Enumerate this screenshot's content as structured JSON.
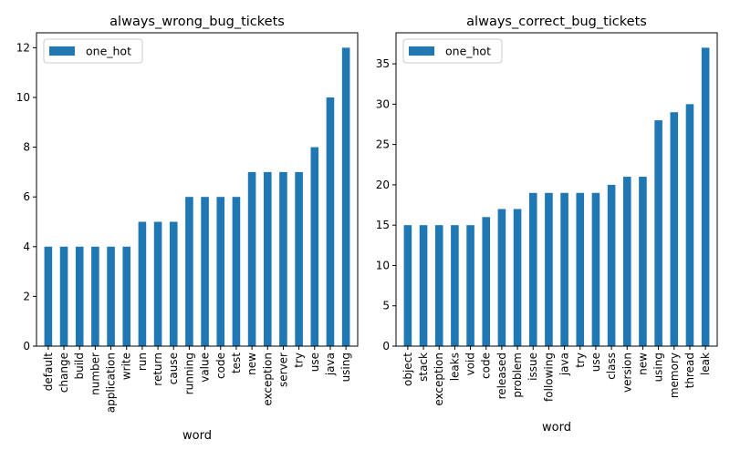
{
  "chart_data": [
    {
      "type": "bar",
      "title": "always_wrong_bug_tickets",
      "xlabel": "word",
      "ylabel": "",
      "ylim": [
        0,
        12.6
      ],
      "yticks": [
        0,
        2,
        4,
        6,
        8,
        10,
        12
      ],
      "legend": {
        "position": "top-left",
        "entries": [
          "one_hot"
        ]
      },
      "grid": false,
      "categories": [
        "default",
        "change",
        "build",
        "number",
        "application",
        "write",
        "run",
        "return",
        "cause",
        "running",
        "value",
        "code",
        "test",
        "new",
        "exception",
        "server",
        "try",
        "use",
        "java",
        "using"
      ],
      "series": [
        {
          "name": "one_hot",
          "color": "#1f77b4",
          "values": [
            4,
            4,
            4,
            4,
            4,
            4,
            5,
            5,
            5,
            6,
            6,
            6,
            6,
            7,
            7,
            7,
            7,
            8,
            10,
            12
          ]
        }
      ]
    },
    {
      "type": "bar",
      "title": "always_correct_bug_tickets",
      "xlabel": "word",
      "ylabel": "",
      "ylim": [
        0,
        38.85
      ],
      "yticks": [
        0,
        5,
        10,
        15,
        20,
        25,
        30,
        35
      ],
      "legend": {
        "position": "top-left",
        "entries": [
          "one_hot"
        ]
      },
      "grid": false,
      "categories": [
        "object",
        "stack",
        "exception",
        "leaks",
        "void",
        "code",
        "released",
        "problem",
        "issue",
        "following",
        "java",
        "try",
        "use",
        "class",
        "version",
        "new",
        "using",
        "memory",
        "thread",
        "leak"
      ],
      "series": [
        {
          "name": "one_hot",
          "color": "#1f77b4",
          "values": [
            15,
            15,
            15,
            15,
            15,
            16,
            17,
            17,
            19,
            19,
            19,
            19,
            19,
            20,
            21,
            21,
            28,
            29,
            30,
            37
          ]
        }
      ]
    }
  ]
}
